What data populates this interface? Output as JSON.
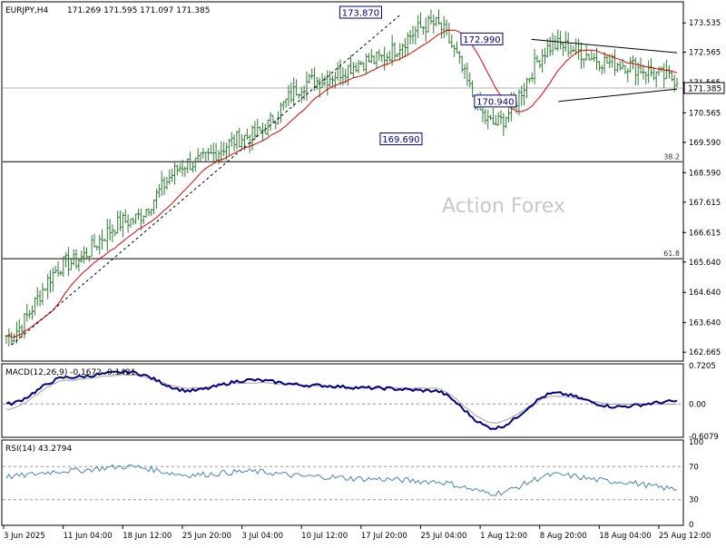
{
  "symbol_line": {
    "symbol": "EURJPY,H4",
    "ohlc": "171.269 171.595 171.097 171.385"
  },
  "watermark": "Action Forex",
  "price_panel": {
    "y_ticks": [
      "173.535",
      "172.565",
      "171.565",
      "170.565",
      "169.590",
      "168.590",
      "167.615",
      "166.615",
      "165.640",
      "164.640",
      "163.640",
      "162.665"
    ],
    "current_price": "171.385",
    "current_value": 171.385,
    "fib_levels": [
      {
        "label": "38.2",
        "value": 168.95
      },
      {
        "label": "61.8",
        "value": 165.75
      }
    ],
    "annotations": [
      {
        "label": "173.870",
        "value": 173.87
      },
      {
        "label": "172.990",
        "value": 172.99
      },
      {
        "label": "170.940",
        "value": 170.94
      },
      {
        "label": "169.690",
        "value": 169.69
      }
    ]
  },
  "macd_panel": {
    "title": "MACD(12,26,9) -0.1672 -0.1431",
    "y_ticks": [
      "0.7205",
      "0.00",
      "-0.6079"
    ]
  },
  "rsi_panel": {
    "title": "RSI(14) 43.2794",
    "y_ticks": [
      "100",
      "70",
      "30",
      "0"
    ]
  },
  "x_labels": [
    "3 Jun 2025",
    "11 Jun 04:00",
    "18 Jun 12:00",
    "25 Jun 20:00",
    "3 Jul 04:00",
    "10 Jul 12:00",
    "17 Jul 20:00",
    "25 Jul 04:00",
    "1 Aug 12:00",
    "8 Aug 20:00",
    "18 Aug 04:00",
    "25 Aug 12:00"
  ],
  "colors": {
    "bars": "#2e7d32",
    "moving_average": "#e00000",
    "macd": "#000080",
    "macd_signal": "#a0a0a0",
    "rsi": "#4682b4",
    "annotation_border": "#000080"
  },
  "chart_data": [
    {
      "type": "line",
      "name": "EURJPY H4 price",
      "x": [
        "3 Jun 2025",
        "11 Jun 04:00",
        "18 Jun 12:00",
        "25 Jun 20:00",
        "3 Jul 04:00",
        "10 Jul 12:00",
        "17 Jul 20:00",
        "25 Jul 04:00",
        "1 Aug 12:00",
        "8 Aug 20:00",
        "18 Aug 04:00",
        "25 Aug 12:00"
      ],
      "series": [
        {
          "values": [
            163.2,
            165.6,
            167.0,
            168.9,
            169.8,
            171.6,
            172.3,
            173.5,
            170.2,
            172.8,
            172.2,
            171.7
          ]
        }
      ],
      "ylim": [
        162.4,
        174.2
      ],
      "grid": false
    },
    {
      "type": "line",
      "title": "MACD(12,26,9) -0.1672 -0.1431",
      "x": [
        "3 Jun 2025",
        "11 Jun 04:00",
        "18 Jun 12:00",
        "25 Jun 20:00",
        "3 Jul 04:00",
        "10 Jul 12:00",
        "17 Jul 20:00",
        "25 Jul 04:00",
        "1 Aug 12:00",
        "8 Aug 20:00",
        "18 Aug 04:00",
        "25 Aug 12:00"
      ],
      "series": [
        {
          "values": [
            0.0,
            0.5,
            0.6,
            0.25,
            0.45,
            0.35,
            0.3,
            0.25,
            -0.45,
            0.2,
            -0.05,
            0.05
          ]
        },
        {
          "values": [
            -0.1,
            0.45,
            0.55,
            0.3,
            0.4,
            0.35,
            0.3,
            0.3,
            -0.35,
            0.15,
            0.0,
            0.0
          ]
        }
      ],
      "ylim": [
        -0.6079,
        0.7205
      ]
    },
    {
      "type": "line",
      "title": "RSI(14) 43.2794",
      "x": [
        "3 Jun 2025",
        "11 Jun 04:00",
        "18 Jun 12:00",
        "25 Jun 20:00",
        "3 Jul 04:00",
        "10 Jul 12:00",
        "17 Jul 20:00",
        "25 Jul 04:00",
        "1 Aug 12:00",
        "8 Aug 20:00",
        "18 Aug 04:00",
        "25 Aug 12:00"
      ],
      "series": [
        {
          "values": [
            58,
            65,
            70,
            60,
            64,
            58,
            55,
            52,
            38,
            60,
            52,
            43
          ]
        }
      ],
      "ylim": [
        0,
        100
      ]
    }
  ]
}
